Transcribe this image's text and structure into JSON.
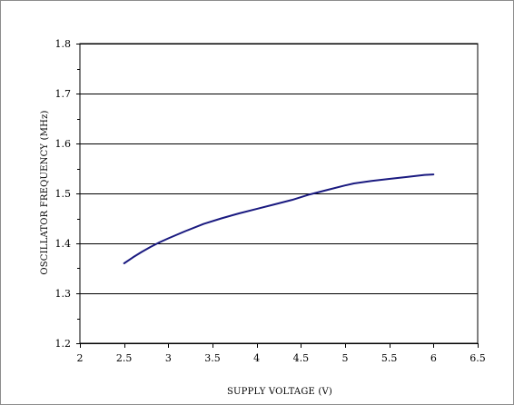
{
  "chart_data": {
    "type": "line",
    "xlabel": "SUPPLY VOLTAGE (V)",
    "ylabel": "OSCILLATOR FREQUENCY (MHz)",
    "xlim": [
      2,
      6.5
    ],
    "ylim": [
      1.2,
      1.8
    ],
    "x_ticks": [
      "2",
      "2.5",
      "3",
      "3.5",
      "4",
      "4.5",
      "5",
      "5.5",
      "6",
      "6.5"
    ],
    "y_ticks": [
      "1.2",
      "1.3",
      "1.4",
      "1.5",
      "1.6",
      "1.7",
      "1.8"
    ],
    "grid": "horizontal major gridlines",
    "legend": "none",
    "series": [
      {
        "color": "#1a1a80",
        "x": [
          2.5,
          2.6,
          2.7,
          2.8,
          2.9,
          3.0,
          3.2,
          3.4,
          3.6,
          3.8,
          4.0,
          4.2,
          4.4,
          4.6,
          4.8,
          5.0,
          5.1,
          5.3,
          5.5,
          5.7,
          5.9,
          6.0
        ],
        "y": [
          1.36,
          1.372,
          1.383,
          1.393,
          1.402,
          1.41,
          1.425,
          1.439,
          1.45,
          1.46,
          1.469,
          1.478,
          1.487,
          1.498,
          1.507,
          1.516,
          1.52,
          1.525,
          1.529,
          1.533,
          1.537,
          1.538
        ]
      }
    ]
  }
}
